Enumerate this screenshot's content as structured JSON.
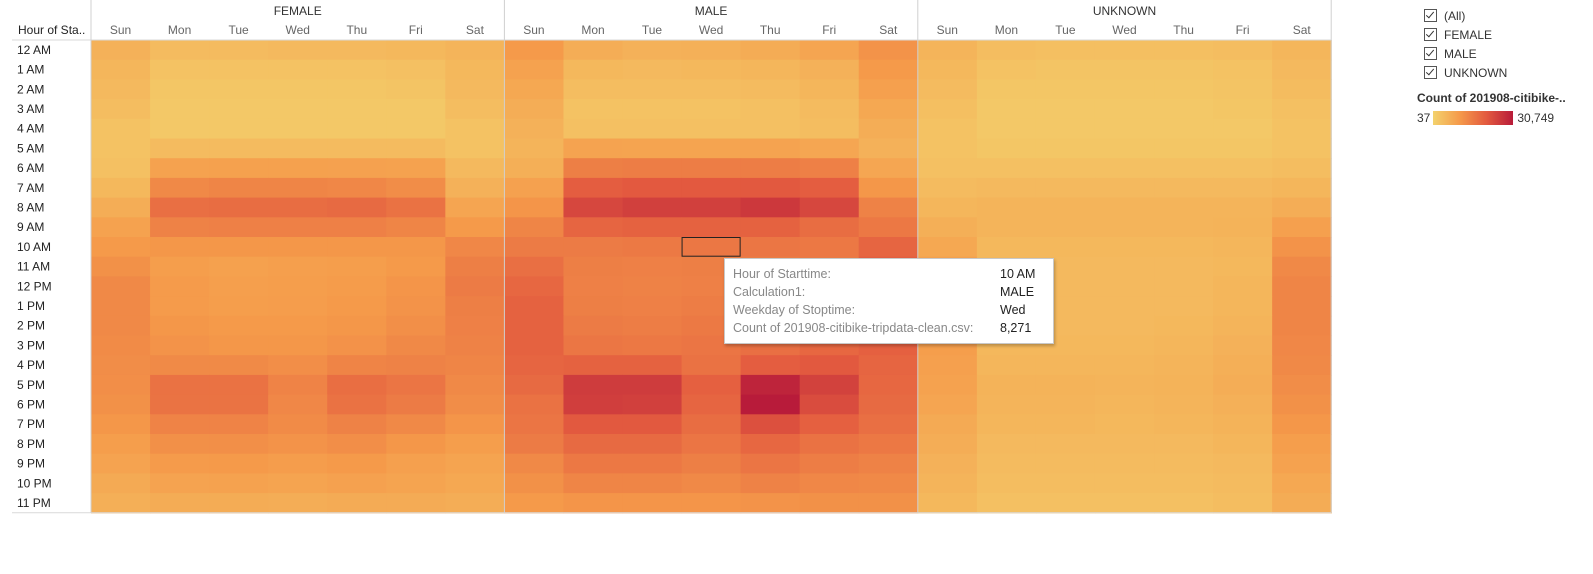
{
  "chart_data": {
    "type": "heatmap",
    "row_header": "Hour of Sta..",
    "groups": [
      "FEMALE",
      "MALE",
      "UNKNOWN"
    ],
    "days": [
      "Sun",
      "Mon",
      "Tue",
      "Wed",
      "Thu",
      "Fri",
      "Sat"
    ],
    "hours": [
      "12 AM",
      "1 AM",
      "2 AM",
      "3 AM",
      "4 AM",
      "5 AM",
      "6 AM",
      "7 AM",
      "8 AM",
      "9 AM",
      "10 AM",
      "11 AM",
      "12 PM",
      "1 PM",
      "2 PM",
      "3 PM",
      "4 PM",
      "5 PM",
      "6 PM",
      "7 PM",
      "8 PM",
      "9 PM",
      "10 PM",
      "11 PM"
    ],
    "color_min": 37,
    "color_max": 30749,
    "color_scale": [
      "#f3d26d",
      "#f59a4a",
      "#e35a3f",
      "#b81b3a"
    ],
    "values": {
      "FEMALE": [
        [
          1200,
          600,
          600,
          700,
          700,
          800,
          1000
        ],
        [
          900,
          300,
          300,
          300,
          300,
          400,
          800
        ],
        [
          700,
          200,
          200,
          200,
          200,
          250,
          700
        ],
        [
          500,
          150,
          150,
          150,
          150,
          150,
          500
        ],
        [
          300,
          150,
          150,
          150,
          150,
          150,
          300
        ],
        [
          300,
          600,
          600,
          600,
          600,
          600,
          300
        ],
        [
          400,
          2500,
          2700,
          2700,
          2600,
          2500,
          700
        ],
        [
          800,
          5500,
          6000,
          6000,
          5800,
          5000,
          1200
        ],
        [
          1500,
          9500,
          10000,
          10000,
          10500,
          9000,
          2200
        ],
        [
          2500,
          6500,
          6800,
          6800,
          6800,
          6000,
          3500
        ],
        [
          3500,
          3800,
          3800,
          3800,
          3800,
          3800,
          5800
        ],
        [
          4500,
          3000,
          2700,
          2900,
          3000,
          3500,
          7000
        ],
        [
          5500,
          3300,
          2900,
          3000,
          3200,
          4000,
          7500
        ],
        [
          5500,
          3300,
          3000,
          3100,
          3400,
          4200,
          7000
        ],
        [
          5500,
          3800,
          3400,
          3500,
          3800,
          4700,
          6800
        ],
        [
          5300,
          4200,
          3800,
          3800,
          4400,
          5500,
          6500
        ],
        [
          5000,
          5400,
          5400,
          4800,
          6200,
          6500,
          6000
        ],
        [
          4800,
          9000,
          9000,
          6300,
          9800,
          8500,
          5500
        ],
        [
          4500,
          8800,
          8800,
          5800,
          9000,
          7500,
          5000
        ],
        [
          3800,
          6300,
          6300,
          5200,
          6500,
          5500,
          4000
        ],
        [
          3000,
          4600,
          4700,
          4200,
          4800,
          3800,
          3000
        ],
        [
          2400,
          3300,
          3400,
          3100,
          3400,
          2800,
          2300
        ],
        [
          1800,
          2400,
          2500,
          2300,
          2600,
          2300,
          2000
        ],
        [
          1400,
          1600,
          1600,
          1500,
          1700,
          1700,
          1500
        ]
      ],
      "MALE": [
        [
          3500,
          1500,
          1200,
          1300,
          1600,
          2200,
          4200
        ],
        [
          2500,
          800,
          700,
          800,
          900,
          1200,
          3500
        ],
        [
          2000,
          500,
          500,
          500,
          600,
          900,
          2800
        ],
        [
          1500,
          300,
          300,
          300,
          400,
          600,
          2000
        ],
        [
          1200,
          400,
          400,
          400,
          400,
          500,
          1500
        ],
        [
          1000,
          2400,
          2300,
          2300,
          2400,
          2100,
          1200
        ],
        [
          1400,
          7000,
          7300,
          7300,
          7300,
          6800,
          2100
        ],
        [
          2600,
          13000,
          13800,
          13800,
          14000,
          13000,
          3800
        ],
        [
          4000,
          18000,
          20000,
          20000,
          22000,
          18000,
          6500
        ],
        [
          6000,
          11500,
          12000,
          12000,
          12000,
          10000,
          8000
        ],
        [
          7500,
          7500,
          7800,
          8271,
          8300,
          8000,
          11500
        ],
        [
          9500,
          7000,
          6800,
          7000,
          7200,
          7500,
          12500
        ],
        [
          11000,
          6800,
          6500,
          6800,
          7200,
          8000,
          13500
        ],
        [
          12000,
          7000,
          6800,
          7200,
          7500,
          8500,
          13500
        ],
        [
          12000,
          7500,
          7200,
          7800,
          8000,
          9300,
          13000
        ],
        [
          12000,
          8300,
          8000,
          8500,
          9500,
          11000,
          12500
        ],
        [
          11500,
          12000,
          12000,
          9000,
          13000,
          14000,
          11500
        ],
        [
          10500,
          21000,
          21000,
          12500,
          28000,
          19500,
          11000
        ],
        [
          9000,
          20500,
          20000,
          11500,
          30749,
          17000,
          10500
        ],
        [
          8500,
          14000,
          14000,
          10000,
          16000,
          12500,
          9500
        ],
        [
          7500,
          10500,
          10500,
          8500,
          11000,
          9000,
          8000
        ],
        [
          5500,
          8000,
          8000,
          7000,
          8500,
          7200,
          6500
        ],
        [
          4500,
          6000,
          6000,
          5500,
          6500,
          5800,
          5500
        ],
        [
          3500,
          4000,
          4000,
          4000,
          4200,
          4500,
          4500
        ]
      ],
      "UNKNOWN": [
        [
          1000,
          500,
          450,
          450,
          450,
          500,
          900
        ],
        [
          800,
          300,
          250,
          250,
          250,
          300,
          700
        ],
        [
          600,
          200,
          200,
          200,
          200,
          250,
          550
        ],
        [
          450,
          150,
          150,
          150,
          150,
          200,
          400
        ],
        [
          300,
          150,
          150,
          150,
          150,
          150,
          300
        ],
        [
          300,
          200,
          200,
          200,
          200,
          200,
          300
        ],
        [
          400,
          400,
          400,
          400,
          400,
          400,
          500
        ],
        [
          600,
          700,
          700,
          700,
          700,
          700,
          900
        ],
        [
          900,
          1000,
          1000,
          1000,
          1000,
          1000,
          1500
        ],
        [
          1400,
          1000,
          1000,
          1000,
          1000,
          1100,
          2800
        ],
        [
          2000,
          800,
          800,
          800,
          800,
          900,
          4200
        ],
        [
          2500,
          700,
          700,
          700,
          700,
          800,
          5500
        ],
        [
          2800,
          700,
          700,
          700,
          700,
          900,
          6000
        ],
        [
          3000,
          700,
          700,
          700,
          700,
          900,
          6000
        ],
        [
          3000,
          800,
          700,
          700,
          800,
          1000,
          6000
        ],
        [
          3000,
          800,
          800,
          800,
          900,
          1200,
          5800
        ],
        [
          2800,
          900,
          900,
          900,
          1000,
          1400,
          5500
        ],
        [
          2500,
          1100,
          1100,
          1000,
          1100,
          1500,
          5000
        ],
        [
          2200,
          1000,
          1000,
          900,
          1000,
          1300,
          4500
        ],
        [
          1800,
          900,
          900,
          800,
          900,
          1100,
          3800
        ],
        [
          1500,
          700,
          700,
          700,
          700,
          900,
          3000
        ],
        [
          1200,
          600,
          600,
          600,
          600,
          700,
          2500
        ],
        [
          1000,
          500,
          500,
          500,
          500,
          600,
          2000
        ],
        [
          800,
          400,
          400,
          400,
          400,
          500,
          1600
        ]
      ]
    },
    "highlight": {
      "group": "MALE",
      "day": "Wed",
      "hour": "10 AM"
    },
    "legend": {
      "title": "Count of 201908-citibike-..",
      "min_label": "37",
      "max_label": "30,749"
    }
  },
  "filters": {
    "items": [
      "(All)",
      "FEMALE",
      "MALE",
      "UNKNOWN"
    ]
  },
  "tooltip": {
    "rows": [
      {
        "key": "Hour of Starttime:",
        "value": "10 AM"
      },
      {
        "key": "Calculation1:",
        "value": "MALE"
      },
      {
        "key": "Weekday of Stoptime:",
        "value": "Wed"
      },
      {
        "key": "Count of 201908-citibike-tripdata-clean.csv:",
        "value": "8,271"
      }
    ]
  }
}
